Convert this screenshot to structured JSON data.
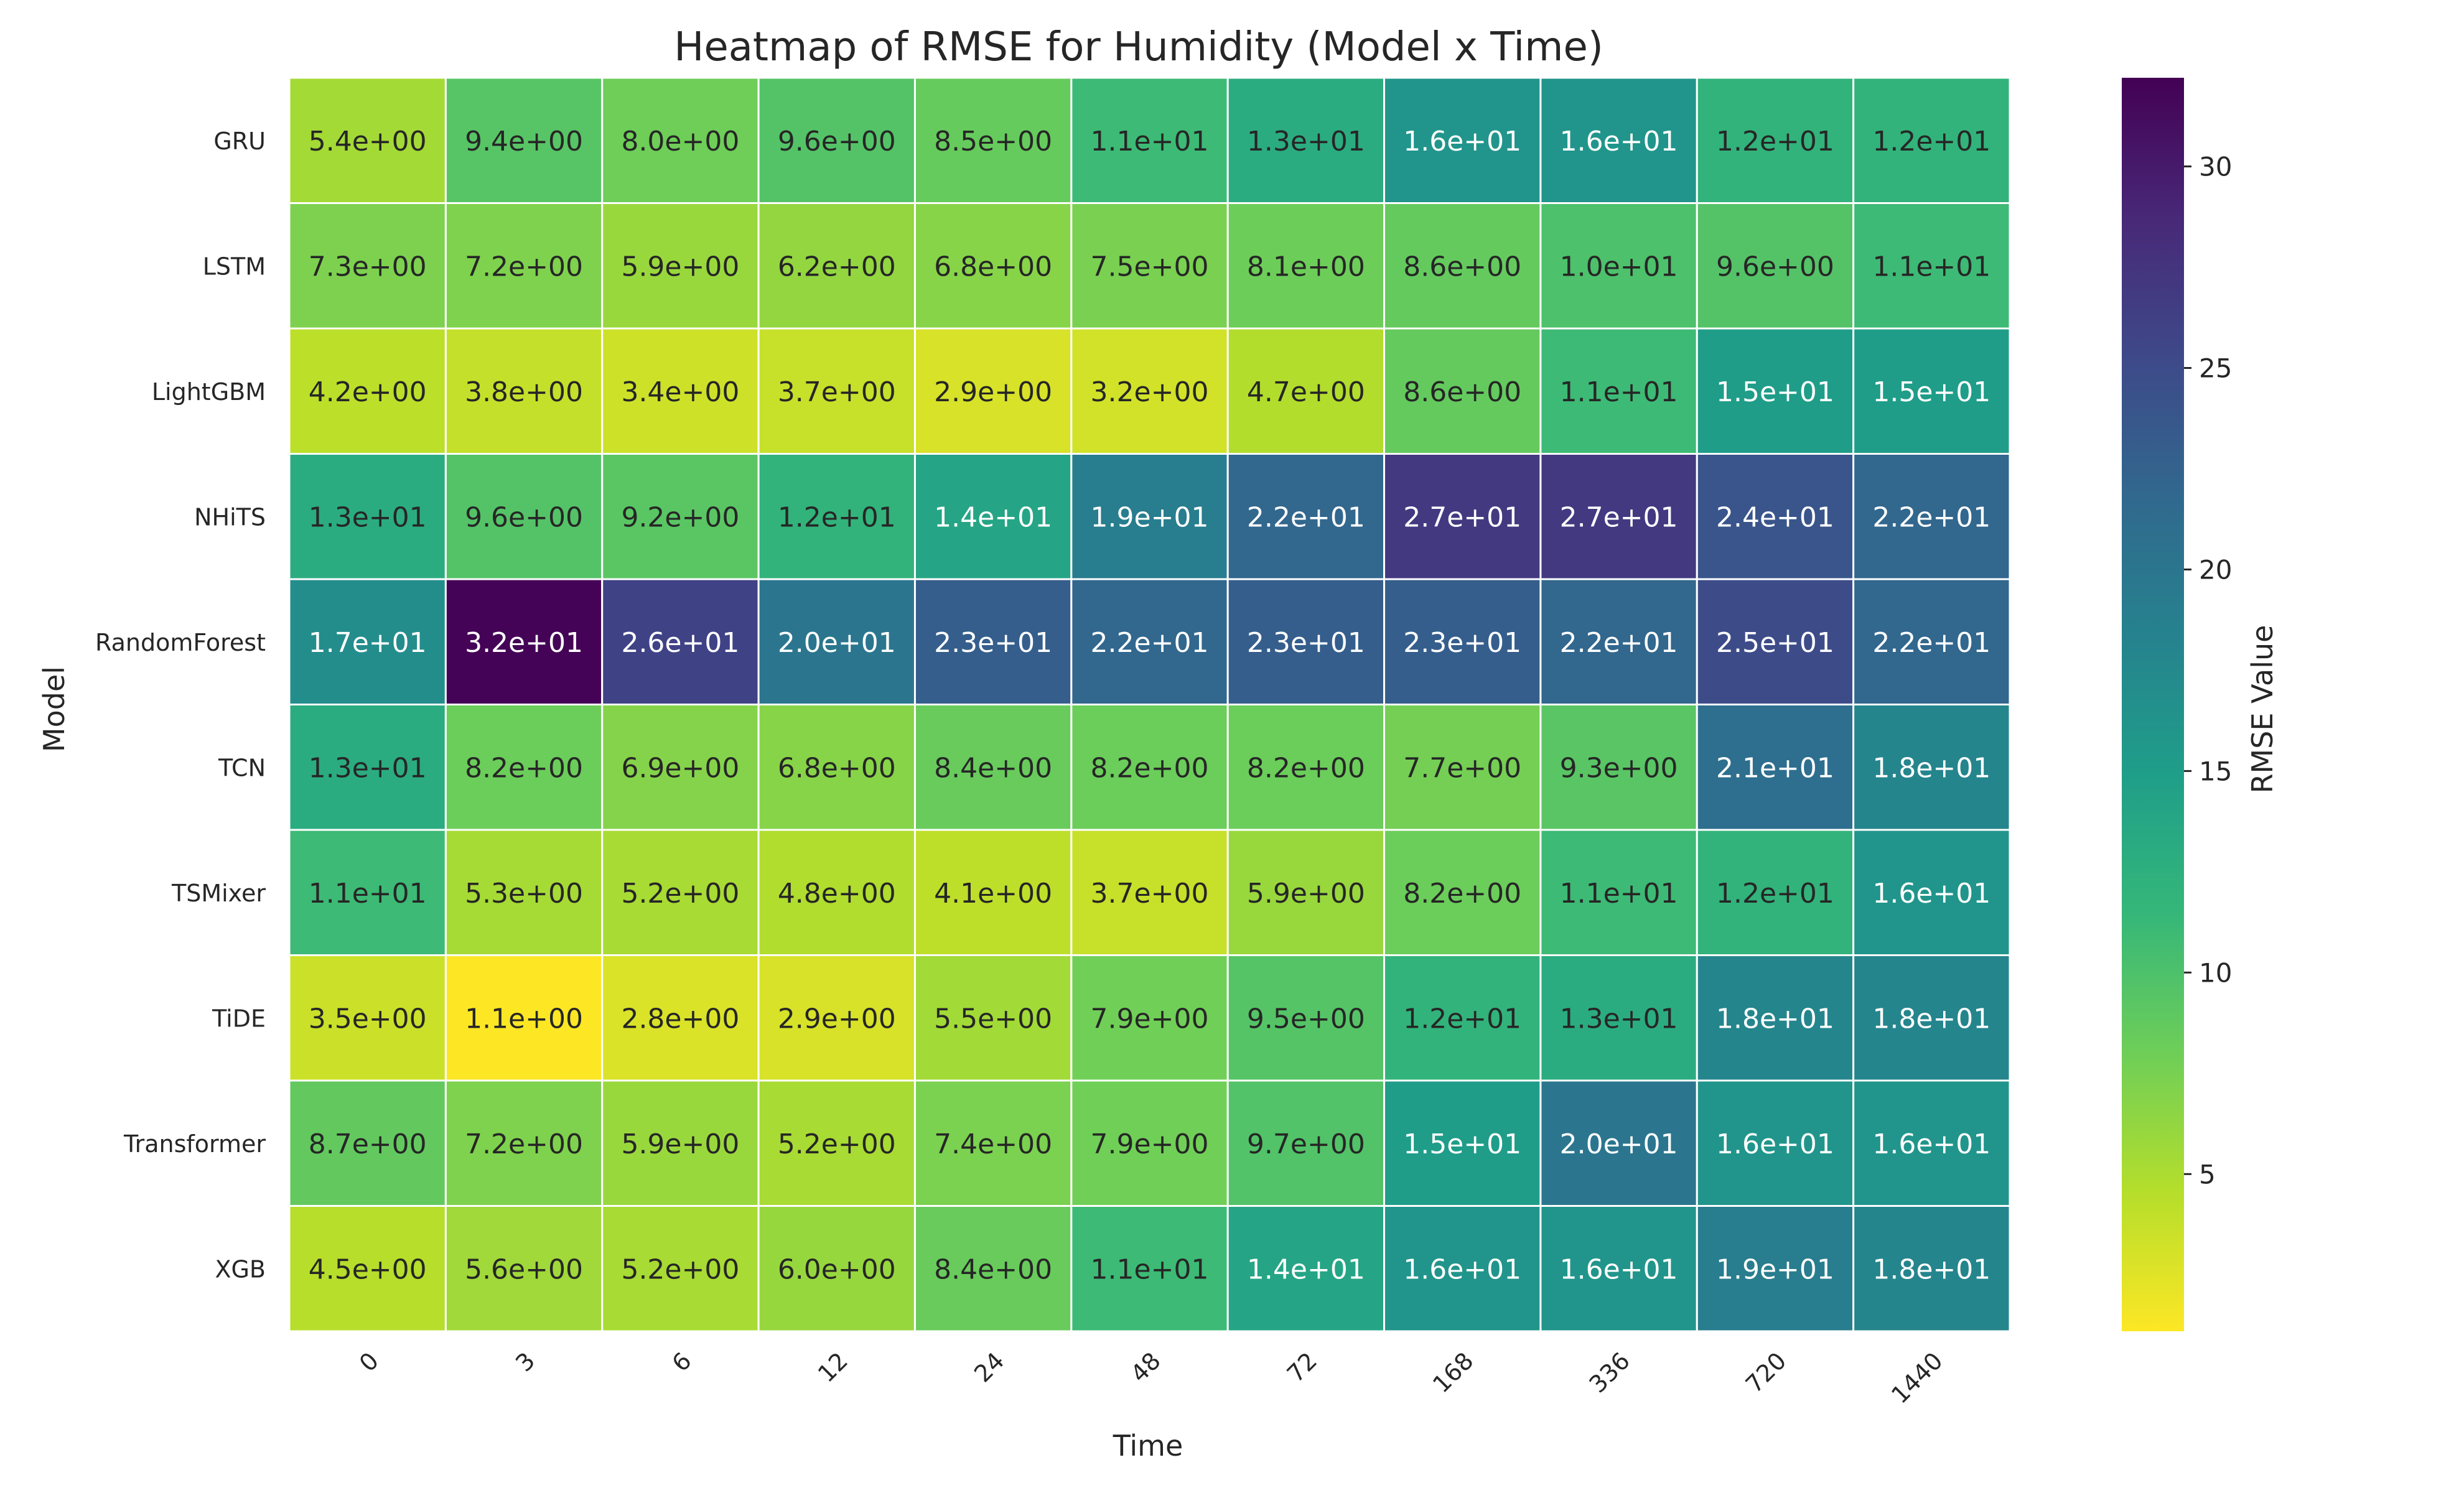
{
  "chart_data": {
    "type": "heatmap",
    "title": "Heatmap of RMSE for Humidity (Model x Time)",
    "xlabel": "Time",
    "ylabel": "Model",
    "colorbar_label": "RMSE Value",
    "colormap": "viridis_r",
    "vmin": 1.1,
    "vmax": 32.2,
    "colorbar_ticks": [
      5,
      10,
      15,
      20,
      25,
      30
    ],
    "x_categories": [
      "0",
      "3",
      "6",
      "12",
      "24",
      "48",
      "72",
      "168",
      "336",
      "720",
      "1440"
    ],
    "y_categories": [
      "GRU",
      "LSTM",
      "LightGBM",
      "NHiTS",
      "RandomForest",
      "TCN",
      "TSMixer",
      "TiDE",
      "Transformer",
      "XGB"
    ],
    "values": [
      [
        5.4,
        9.4,
        8.0,
        9.6,
        8.5,
        11,
        13,
        16,
        16,
        12,
        12
      ],
      [
        7.3,
        7.2,
        5.9,
        6.2,
        6.8,
        7.5,
        8.1,
        8.6,
        10,
        9.6,
        11
      ],
      [
        4.2,
        3.8,
        3.4,
        3.7,
        2.9,
        3.2,
        4.7,
        8.6,
        11,
        15,
        15
      ],
      [
        13,
        9.6,
        9.2,
        12,
        14,
        19,
        22,
        27,
        27,
        24,
        22
      ],
      [
        17,
        32,
        26,
        20,
        23,
        22,
        23,
        23,
        22,
        25,
        22
      ],
      [
        13,
        8.2,
        6.9,
        6.8,
        8.4,
        8.2,
        8.2,
        7.7,
        9.3,
        21,
        18
      ],
      [
        11,
        5.3,
        5.2,
        4.8,
        4.1,
        3.7,
        5.9,
        8.2,
        11,
        12,
        16
      ],
      [
        3.5,
        1.1,
        2.8,
        2.9,
        5.5,
        7.9,
        9.5,
        12,
        13,
        18,
        18
      ],
      [
        8.7,
        7.2,
        5.9,
        5.2,
        7.4,
        7.9,
        9.7,
        15,
        20,
        16,
        16
      ],
      [
        4.5,
        5.6,
        5.2,
        6.0,
        8.4,
        11,
        14,
        16,
        16,
        19,
        18
      ]
    ],
    "cell_labels": [
      [
        "5.4e+00",
        "9.4e+00",
        "8.0e+00",
        "9.6e+00",
        "8.5e+00",
        "1.1e+01",
        "1.3e+01",
        "1.6e+01",
        "1.6e+01",
        "1.2e+01",
        "1.2e+01"
      ],
      [
        "7.3e+00",
        "7.2e+00",
        "5.9e+00",
        "6.2e+00",
        "6.8e+00",
        "7.5e+00",
        "8.1e+00",
        "8.6e+00",
        "1.0e+01",
        "9.6e+00",
        "1.1e+01"
      ],
      [
        "4.2e+00",
        "3.8e+00",
        "3.4e+00",
        "3.7e+00",
        "2.9e+00",
        "3.2e+00",
        "4.7e+00",
        "8.6e+00",
        "1.1e+01",
        "1.5e+01",
        "1.5e+01"
      ],
      [
        "1.3e+01",
        "9.6e+00",
        "9.2e+00",
        "1.2e+01",
        "1.4e+01",
        "1.9e+01",
        "2.2e+01",
        "2.7e+01",
        "2.7e+01",
        "2.4e+01",
        "2.2e+01"
      ],
      [
        "1.7e+01",
        "3.2e+01",
        "2.6e+01",
        "2.0e+01",
        "2.3e+01",
        "2.2e+01",
        "2.3e+01",
        "2.3e+01",
        "2.2e+01",
        "2.5e+01",
        "2.2e+01"
      ],
      [
        "1.3e+01",
        "8.2e+00",
        "6.9e+00",
        "6.8e+00",
        "8.4e+00",
        "8.2e+00",
        "8.2e+00",
        "7.7e+00",
        "9.3e+00",
        "2.1e+01",
        "1.8e+01"
      ],
      [
        "1.1e+01",
        "5.3e+00",
        "5.2e+00",
        "4.8e+00",
        "4.1e+00",
        "3.7e+00",
        "5.9e+00",
        "8.2e+00",
        "1.1e+01",
        "1.2e+01",
        "1.6e+01"
      ],
      [
        "3.5e+00",
        "1.1e+00",
        "2.8e+00",
        "2.9e+00",
        "5.5e+00",
        "7.9e+00",
        "9.5e+00",
        "1.2e+01",
        "1.3e+01",
        "1.8e+01",
        "1.8e+01"
      ],
      [
        "8.7e+00",
        "7.2e+00",
        "5.9e+00",
        "5.2e+00",
        "7.4e+00",
        "7.9e+00",
        "9.7e+00",
        "1.5e+01",
        "2.0e+01",
        "1.6e+01",
        "1.6e+01"
      ],
      [
        "4.5e+00",
        "5.6e+00",
        "5.2e+00",
        "6.0e+00",
        "8.4e+00",
        "1.1e+01",
        "1.4e+01",
        "1.6e+01",
        "1.6e+01",
        "1.9e+01",
        "1.8e+01"
      ]
    ],
    "grid": false,
    "legend": "colorbar-right"
  }
}
